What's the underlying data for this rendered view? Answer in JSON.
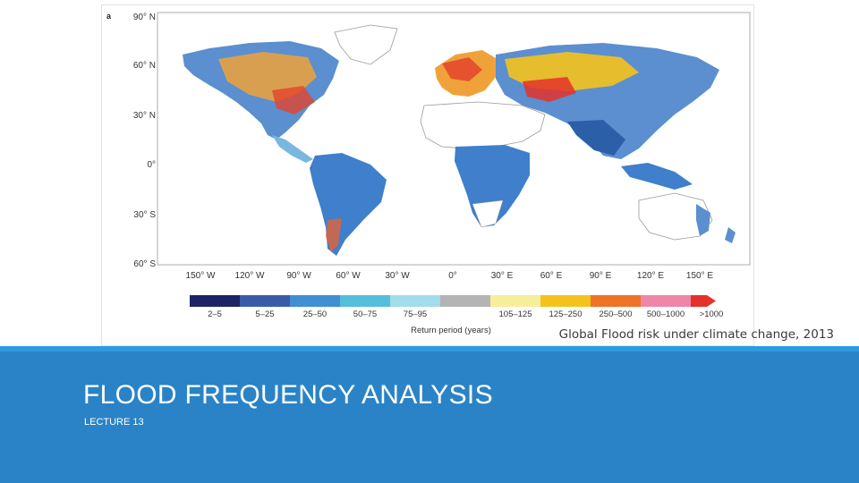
{
  "figure": {
    "panel_letter": "a",
    "latitude_labels": [
      "90° N",
      "60° N",
      "30° N",
      "0°",
      "30° S",
      "60° S"
    ],
    "longitude_labels": [
      "150° W",
      "120° W",
      "90° W",
      "60° W",
      "30° W",
      "0°",
      "30° E",
      "60° E",
      "90° E",
      "120° E",
      "150° E"
    ],
    "legend": {
      "title": "Return period (years)",
      "classes": [
        {
          "label": "2–5",
          "color": "#1d2466"
        },
        {
          "label": "5–25",
          "color": "#3a5ca8"
        },
        {
          "label": "25–50",
          "color": "#3f8fd2"
        },
        {
          "label": "50–75",
          "color": "#55bedb"
        },
        {
          "label": "75–95",
          "color": "#a3dcea"
        },
        {
          "label": "",
          "color": "#b4b4b4"
        },
        {
          "label": "105–125",
          "color": "#f6ee9a"
        },
        {
          "label": "125–250",
          "color": "#f5c219"
        },
        {
          "label": "250–500",
          "color": "#ee7327"
        },
        {
          "label": "500–1000",
          "color": "#ef86a8"
        },
        {
          "label": ">1000",
          "color": "#e4322b"
        }
      ]
    }
  },
  "caption": "Global Flood risk under climate change, 2013",
  "title": "FLOOD FREQUENCY ANALYSIS",
  "subtitle": "LECTURE 13",
  "colors": {
    "band": "#2a83c6",
    "band_stripe": "#2c9be2"
  }
}
